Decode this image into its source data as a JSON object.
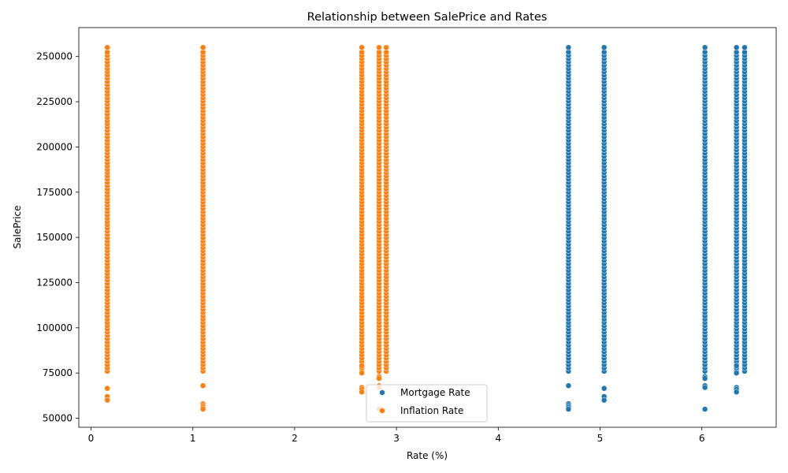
{
  "chart_data": {
    "type": "scatter",
    "title": "Relationship between SalePrice and Rates",
    "xlabel": "Rate (%)",
    "ylabel": "SalePrice",
    "xlim": [
      -0.12,
      6.73
    ],
    "ylim": [
      45000,
      266000
    ],
    "xticks": [
      0,
      1,
      2,
      3,
      4,
      5,
      6
    ],
    "yticks": [
      50000,
      75000,
      100000,
      125000,
      150000,
      175000,
      200000,
      225000,
      250000
    ],
    "grid": false,
    "legend_position": "lower center",
    "y_range": [
      55000,
      255000
    ],
    "series": [
      {
        "name": "Mortgage Rate",
        "color": "#1f77b4",
        "rates": [
          4.69,
          5.04,
          6.03,
          6.34,
          6.42
        ],
        "outliers": [
          [
            4.69,
            68000
          ],
          [
            4.69,
            58000
          ],
          [
            4.69,
            57000
          ],
          [
            4.69,
            56000
          ],
          [
            4.69,
            55000
          ],
          [
            5.04,
            66500
          ],
          [
            5.04,
            62000
          ],
          [
            5.04,
            60000
          ],
          [
            6.03,
            73000
          ],
          [
            6.03,
            72000
          ],
          [
            6.03,
            68000
          ],
          [
            6.03,
            67000
          ],
          [
            6.03,
            55000
          ],
          [
            6.34,
            79000
          ],
          [
            6.34,
            75000
          ],
          [
            6.34,
            67000
          ],
          [
            6.34,
            66000
          ],
          [
            6.34,
            64500
          ]
        ]
      },
      {
        "name": "Inflation Rate",
        "color": "#ff7f0e",
        "rates": [
          0.16,
          1.1,
          2.66,
          2.83,
          2.9
        ],
        "outliers": [
          [
            0.16,
            66500
          ],
          [
            0.16,
            62000
          ],
          [
            0.16,
            60000
          ],
          [
            1.1,
            68000
          ],
          [
            1.1,
            58000
          ],
          [
            1.1,
            57000
          ],
          [
            1.1,
            56000
          ],
          [
            1.1,
            55000
          ],
          [
            2.66,
            79000
          ],
          [
            2.66,
            75000
          ],
          [
            2.66,
            67000
          ],
          [
            2.66,
            66000
          ],
          [
            2.66,
            64500
          ],
          [
            2.83,
            73000
          ],
          [
            2.83,
            72000
          ],
          [
            2.83,
            68000
          ],
          [
            2.83,
            67000
          ],
          [
            2.83,
            55000
          ]
        ]
      }
    ]
  }
}
